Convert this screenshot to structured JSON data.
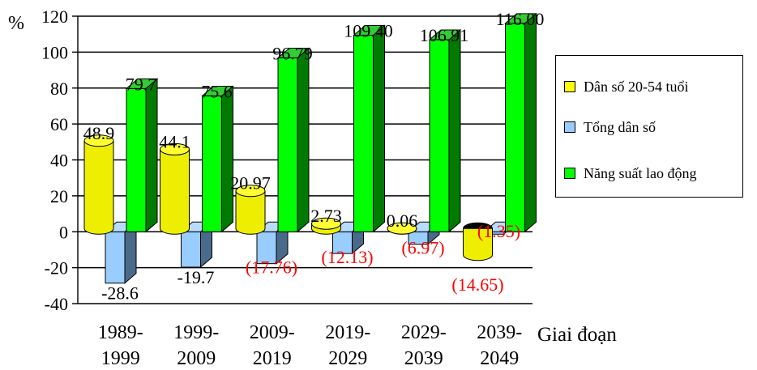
{
  "chart_data": {
    "type": "bar",
    "title": "",
    "ylabel": "%",
    "xlabel": "Giai đoạn",
    "ylim": [
      -40,
      120
    ],
    "yticks": [
      -40,
      -20,
      0,
      20,
      40,
      60,
      80,
      100,
      120
    ],
    "grid": true,
    "categories": [
      [
        "1989-",
        "1999"
      ],
      [
        "1999-",
        "2009"
      ],
      [
        "2009-",
        "2019"
      ],
      [
        "2019-",
        "2029"
      ],
      [
        "2029-",
        "2039"
      ],
      [
        "2039-",
        "2049"
      ]
    ],
    "legend_position": "right",
    "series": [
      {
        "name": "Dân số 20-54 tuổi",
        "values": [
          48.9,
          44.1,
          20.97,
          2.73,
          0.06,
          -14.65
        ],
        "labels": [
          "48.9",
          "44.1",
          "20.97",
          "2.73",
          "0.06",
          "(14.65)"
        ],
        "color": "#ffff00",
        "shape": "cylinder"
      },
      {
        "name": "Tổng dân số",
        "values": [
          -28.6,
          -19.7,
          -17.76,
          -12.13,
          -6.97,
          -1.35
        ],
        "labels": [
          "-28.6",
          "-19.7",
          "(17.76)",
          "(12.13)",
          "(6.97)",
          "(1.35)"
        ],
        "color": "#99ccff",
        "shape": "box"
      },
      {
        "name": "Năng suất lao động",
        "values": [
          79.7,
          75.6,
          96.79,
          109.4,
          106.91,
          116.0
        ],
        "labels": [
          "79.7",
          "75.6",
          "96.79",
          "109.40",
          "106.91",
          "116.00"
        ],
        "color": "#00ff00",
        "shape": "box"
      }
    ],
    "colors": {
      "negative_label": "#ff0000",
      "green_side": "#007a00",
      "green_top": "#33cc33",
      "blue_side": "#4a6a8a"
    }
  }
}
